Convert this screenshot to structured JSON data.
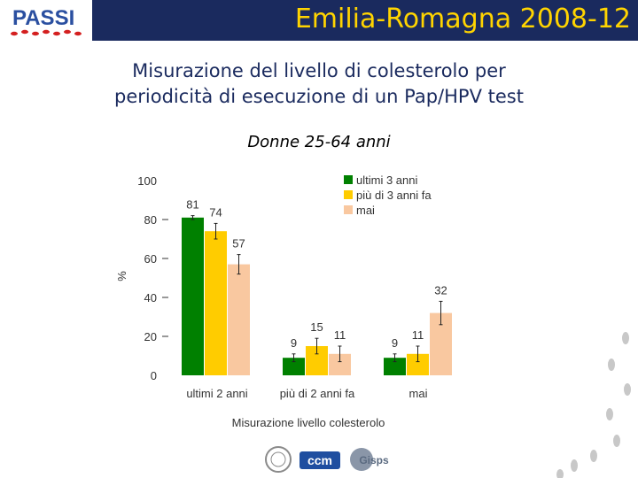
{
  "header": {
    "title": "Emilia-Romagna 2008-12",
    "logo_text": "PASSI",
    "title_bg": "#1a2a5e",
    "title_color": "#ffd400"
  },
  "slide": {
    "title_line1": "Misurazione del livello di colesterolo per",
    "title_line2": "periodicità di esecuzione di un Pap/HPV test",
    "subtitle": "Donne 25-64 anni"
  },
  "footer_logos": [
    "ccm",
    "Gisps"
  ],
  "chart_data": {
    "type": "bar",
    "categories": [
      "ultimi 2 anni",
      "più di 2 anni fa",
      "mai"
    ],
    "series": [
      {
        "name": "ultimi 3 anni",
        "color": "#008000",
        "values": [
          81,
          9,
          9
        ],
        "ci": [
          [
            80,
            82
          ],
          [
            7,
            11
          ],
          [
            7,
            11
          ]
        ]
      },
      {
        "name": "più di 3 anni fa",
        "color": "#ffcc00",
        "values": [
          74,
          15,
          11
        ],
        "ci": [
          [
            70,
            78
          ],
          [
            11,
            19
          ],
          [
            7,
            15
          ]
        ]
      },
      {
        "name": "mai",
        "color": "#f9c8a0",
        "values": [
          57,
          11,
          32
        ],
        "ci": [
          [
            52,
            62
          ],
          [
            7,
            15
          ],
          [
            26,
            38
          ]
        ]
      }
    ],
    "data_labels": [
      [
        "81",
        "9",
        "9"
      ],
      [
        "74",
        "15",
        "11"
      ],
      [
        "57",
        "11",
        "32"
      ]
    ],
    "xlabel": "Misurazione livello colesterolo",
    "ylabel": "%",
    "yticks": [
      0,
      20,
      40,
      60,
      80,
      100
    ],
    "ylim": [
      0,
      100
    ],
    "legend_position": "top-right"
  }
}
